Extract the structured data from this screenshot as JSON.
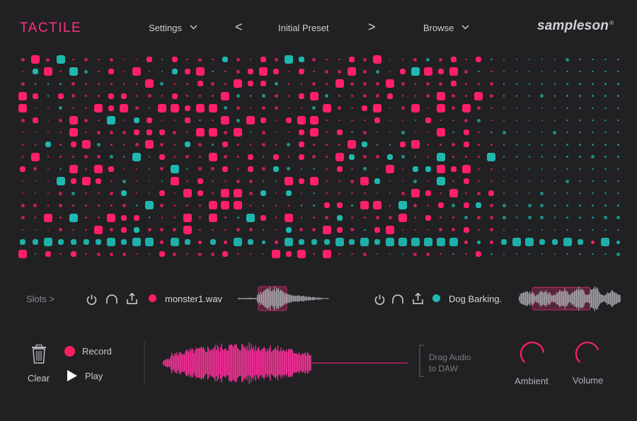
{
  "header": {
    "brand": "TACTILE",
    "settings_label": "Settings",
    "prev_label": "<",
    "preset_name": "Initial Preset",
    "next_label": ">",
    "browse_label": "Browse",
    "logo": "sampleson",
    "logo_mark": "®"
  },
  "colors": {
    "background": "#212123",
    "accent_pink": "#ff1f6b",
    "accent_teal": "#1fb8b0",
    "text": "#c9c9cc"
  },
  "slots": {
    "label": "Slots >",
    "slot1": {
      "filename": "monster1.wav",
      "color": "#ff2060"
    },
    "slot2": {
      "filename": "Dog Barking.",
      "color": "#1fb8b0"
    }
  },
  "transport": {
    "clear_label": "Clear",
    "record_label": "Record",
    "play_label": "Play"
  },
  "drag_hint": {
    "line1": "Drag Audio",
    "line2": "to DAW"
  },
  "knobs": {
    "ambient": {
      "label": "Ambient",
      "level": 0.8
    },
    "volume": {
      "label": "Volume",
      "level": 0.75
    }
  },
  "icons": [
    "trash-icon",
    "record-dot-icon",
    "play-icon",
    "power-icon",
    "loop-icon",
    "export-icon",
    "chevron-down-icon"
  ]
}
